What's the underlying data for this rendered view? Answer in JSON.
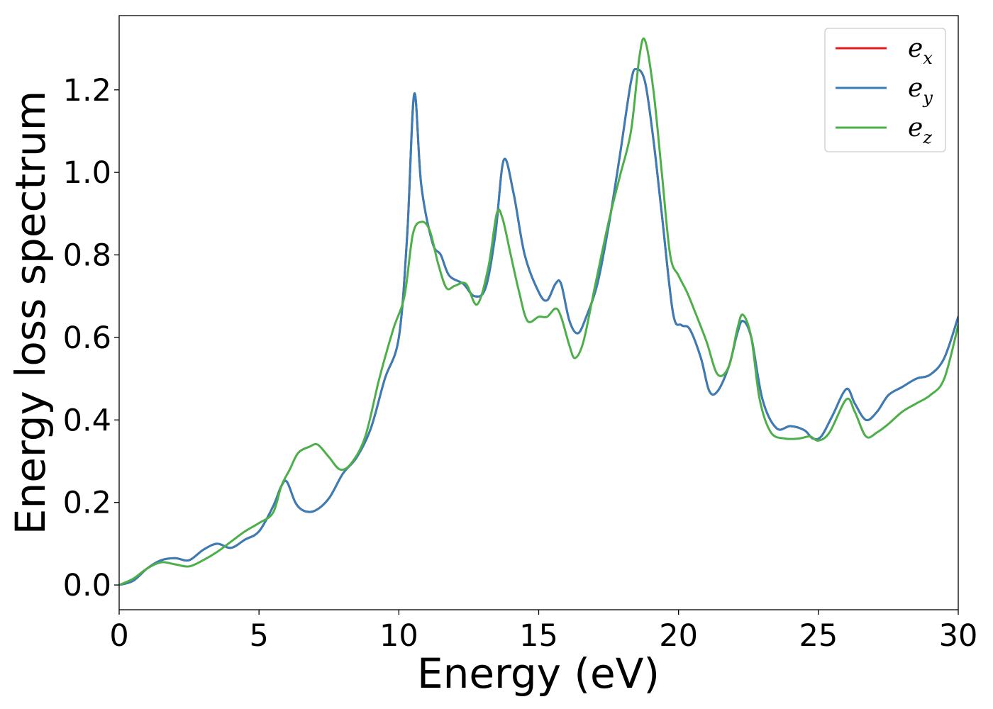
{
  "chart_data": {
    "type": "line",
    "xlabel": "Energy (eV)",
    "ylabel": "Energy loss spectrum",
    "xlim": [
      0,
      30
    ],
    "ylim": [
      -0.06,
      1.38
    ],
    "xticks": [
      0,
      5,
      10,
      15,
      20,
      25,
      30
    ],
    "xtick_labels": [
      "0",
      "5",
      "10",
      "15",
      "20",
      "25",
      "30"
    ],
    "yticks": [
      0.0,
      0.2,
      0.4,
      0.6,
      0.8,
      1.0,
      1.2
    ],
    "ytick_labels": [
      "0.0",
      "0.2",
      "0.4",
      "0.6",
      "0.8",
      "1.0",
      "1.2"
    ],
    "grid": false,
    "legend": {
      "placement": "top-right",
      "entries": [
        {
          "base": "e",
          "sub": "x",
          "color": "#e41a1c"
        },
        {
          "base": "e",
          "sub": "y",
          "color": "#377eb8"
        },
        {
          "base": "e",
          "sub": "z",
          "color": "#4daf4a"
        }
      ]
    },
    "series": [
      {
        "name": "e_x",
        "color": "#e41a1c",
        "x": [
          0,
          0.5,
          1,
          1.5,
          2,
          2.5,
          3,
          3.5,
          4,
          4.5,
          5,
          5.5,
          5.8,
          6,
          6.3,
          6.6,
          7,
          7.5,
          8,
          8.5,
          9,
          9.5,
          10,
          10.3,
          10.55,
          10.8,
          11.2,
          11.5,
          11.8,
          12.3,
          12.7,
          13.1,
          13.45,
          13.75,
          14.1,
          14.5,
          15,
          15.3,
          15.6,
          15.8,
          16.1,
          16.4,
          16.7,
          17.1,
          17.5,
          17.9,
          18.3,
          18.5,
          18.8,
          19.1,
          19.4,
          19.8,
          20.1,
          20.4,
          20.8,
          21.1,
          21.4,
          21.8,
          22.1,
          22.3,
          22.6,
          23,
          23.5,
          24,
          24.5,
          24.8,
          25.1,
          25.5,
          26,
          26.3,
          26.7,
          27.1,
          27.5,
          28,
          28.5,
          29,
          29.5,
          30
        ],
        "y": [
          0.0,
          0.01,
          0.04,
          0.06,
          0.065,
          0.06,
          0.085,
          0.1,
          0.09,
          0.11,
          0.13,
          0.19,
          0.24,
          0.25,
          0.2,
          0.18,
          0.18,
          0.21,
          0.27,
          0.31,
          0.38,
          0.5,
          0.6,
          0.85,
          1.19,
          0.97,
          0.83,
          0.8,
          0.75,
          0.73,
          0.7,
          0.72,
          0.85,
          1.03,
          0.95,
          0.8,
          0.71,
          0.69,
          0.73,
          0.73,
          0.64,
          0.61,
          0.65,
          0.73,
          0.87,
          1.04,
          1.22,
          1.25,
          1.22,
          1.08,
          0.9,
          0.66,
          0.63,
          0.62,
          0.55,
          0.47,
          0.47,
          0.53,
          0.61,
          0.64,
          0.6,
          0.45,
          0.38,
          0.385,
          0.375,
          0.355,
          0.36,
          0.41,
          0.475,
          0.44,
          0.4,
          0.42,
          0.46,
          0.48,
          0.5,
          0.51,
          0.55,
          0.65
        ]
      },
      {
        "name": "e_y",
        "color": "#377eb8",
        "x": [
          0,
          0.5,
          1,
          1.5,
          2,
          2.5,
          3,
          3.5,
          4,
          4.5,
          5,
          5.5,
          5.8,
          6,
          6.3,
          6.6,
          7,
          7.5,
          8,
          8.5,
          9,
          9.5,
          10,
          10.3,
          10.55,
          10.8,
          11.2,
          11.5,
          11.8,
          12.3,
          12.7,
          13.1,
          13.45,
          13.75,
          14.1,
          14.5,
          15,
          15.3,
          15.6,
          15.8,
          16.1,
          16.4,
          16.7,
          17.1,
          17.5,
          17.9,
          18.3,
          18.5,
          18.8,
          19.1,
          19.4,
          19.8,
          20.1,
          20.4,
          20.8,
          21.1,
          21.4,
          21.8,
          22.1,
          22.3,
          22.6,
          23,
          23.5,
          24,
          24.5,
          24.8,
          25.1,
          25.5,
          26,
          26.3,
          26.7,
          27.1,
          27.5,
          28,
          28.5,
          29,
          29.5,
          30
        ],
        "y": [
          0.0,
          0.01,
          0.04,
          0.06,
          0.065,
          0.06,
          0.085,
          0.1,
          0.09,
          0.11,
          0.13,
          0.19,
          0.24,
          0.25,
          0.2,
          0.18,
          0.18,
          0.21,
          0.27,
          0.31,
          0.38,
          0.5,
          0.6,
          0.85,
          1.19,
          0.97,
          0.83,
          0.8,
          0.75,
          0.73,
          0.7,
          0.72,
          0.85,
          1.03,
          0.95,
          0.8,
          0.71,
          0.69,
          0.73,
          0.73,
          0.64,
          0.61,
          0.65,
          0.73,
          0.87,
          1.04,
          1.22,
          1.25,
          1.22,
          1.08,
          0.9,
          0.66,
          0.63,
          0.62,
          0.55,
          0.47,
          0.47,
          0.53,
          0.61,
          0.64,
          0.6,
          0.45,
          0.38,
          0.385,
          0.375,
          0.355,
          0.36,
          0.41,
          0.475,
          0.44,
          0.4,
          0.42,
          0.46,
          0.48,
          0.5,
          0.51,
          0.55,
          0.65
        ]
      },
      {
        "name": "e_z",
        "color": "#4daf4a",
        "x": [
          0,
          0.5,
          1,
          1.5,
          2,
          2.5,
          3,
          3.5,
          4,
          4.5,
          5,
          5.5,
          5.8,
          6.1,
          6.4,
          6.8,
          7.1,
          7.5,
          7.9,
          8.3,
          8.8,
          9.3,
          9.8,
          10.2,
          10.5,
          10.8,
          11.1,
          11.4,
          11.7,
          12,
          12.4,
          12.8,
          13.2,
          13.5,
          13.7,
          14,
          14.3,
          14.6,
          15,
          15.3,
          15.6,
          15.8,
          16.1,
          16.3,
          16.6,
          17,
          17.5,
          17.9,
          18.3,
          18.6,
          18.8,
          19.1,
          19.4,
          19.7,
          20,
          20.3,
          20.6,
          21,
          21.4,
          21.8,
          22.1,
          22.3,
          22.6,
          22.9,
          23.3,
          23.8,
          24.3,
          24.7,
          25,
          25.4,
          26,
          26.3,
          26.7,
          27.1,
          27.5,
          28,
          28.5,
          29,
          29.5,
          30
        ],
        "y": [
          0.0,
          0.015,
          0.04,
          0.055,
          0.05,
          0.045,
          0.06,
          0.08,
          0.105,
          0.13,
          0.15,
          0.175,
          0.24,
          0.28,
          0.32,
          0.335,
          0.34,
          0.31,
          0.28,
          0.295,
          0.36,
          0.5,
          0.62,
          0.7,
          0.85,
          0.88,
          0.86,
          0.78,
          0.72,
          0.725,
          0.73,
          0.68,
          0.77,
          0.9,
          0.89,
          0.8,
          0.71,
          0.64,
          0.65,
          0.65,
          0.67,
          0.65,
          0.58,
          0.55,
          0.59,
          0.72,
          0.88,
          0.99,
          1.1,
          1.28,
          1.32,
          1.2,
          1.0,
          0.8,
          0.75,
          0.71,
          0.66,
          0.59,
          0.51,
          0.53,
          0.62,
          0.655,
          0.6,
          0.45,
          0.37,
          0.355,
          0.355,
          0.36,
          0.35,
          0.37,
          0.45,
          0.42,
          0.36,
          0.37,
          0.39,
          0.42,
          0.44,
          0.46,
          0.5,
          0.63
        ]
      }
    ]
  }
}
